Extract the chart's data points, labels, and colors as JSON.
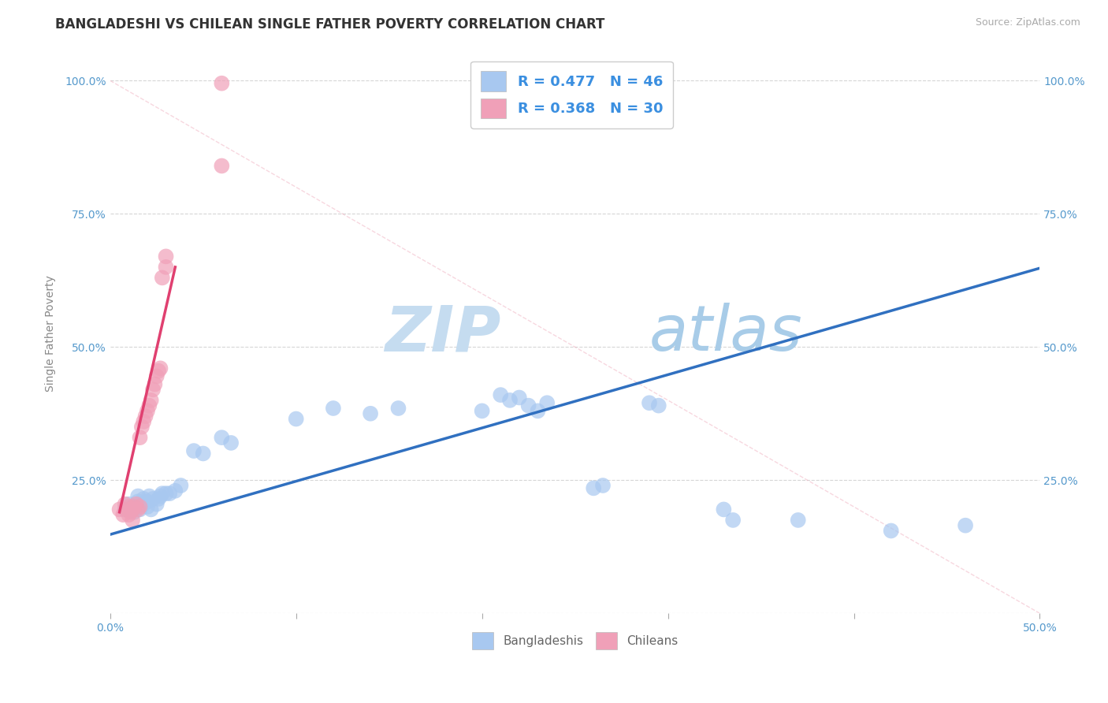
{
  "title": "BANGLADESHI VS CHILEAN SINGLE FATHER POVERTY CORRELATION CHART",
  "source": "Source: ZipAtlas.com",
  "xlim": [
    0.0,
    0.5
  ],
  "ylim": [
    0.0,
    1.05
  ],
  "ylabel": "Single Father Poverty",
  "legend_r1": "R = 0.477",
  "legend_n1": "N = 46",
  "legend_r2": "R = 0.368",
  "legend_n2": "N = 30",
  "blue_color": "#A8C8F0",
  "pink_color": "#F0A0B8",
  "blue_line_color": "#3070C0",
  "pink_line_color": "#E04070",
  "watermark_zip": "ZIP",
  "watermark_atlas": "atlas",
  "watermark_color": "#D8E8F8",
  "grid_color": "#CCCCCC",
  "background_color": "#FFFFFF",
  "title_fontsize": 12,
  "axis_label_fontsize": 10,
  "tick_fontsize": 10,
  "blue_scatter": [
    [
      0.008,
      0.195
    ],
    [
      0.01,
      0.205
    ],
    [
      0.012,
      0.2
    ],
    [
      0.013,
      0.19
    ],
    [
      0.015,
      0.21
    ],
    [
      0.015,
      0.22
    ],
    [
      0.016,
      0.195
    ],
    [
      0.018,
      0.205
    ],
    [
      0.018,
      0.215
    ],
    [
      0.02,
      0.2
    ],
    [
      0.02,
      0.21
    ],
    [
      0.021,
      0.22
    ],
    [
      0.022,
      0.195
    ],
    [
      0.023,
      0.215
    ],
    [
      0.025,
      0.205
    ],
    [
      0.026,
      0.215
    ],
    [
      0.027,
      0.22
    ],
    [
      0.028,
      0.225
    ],
    [
      0.03,
      0.225
    ],
    [
      0.032,
      0.225
    ],
    [
      0.035,
      0.23
    ],
    [
      0.038,
      0.24
    ],
    [
      0.045,
      0.305
    ],
    [
      0.05,
      0.3
    ],
    [
      0.06,
      0.33
    ],
    [
      0.065,
      0.32
    ],
    [
      0.1,
      0.365
    ],
    [
      0.12,
      0.385
    ],
    [
      0.14,
      0.375
    ],
    [
      0.155,
      0.385
    ],
    [
      0.2,
      0.38
    ],
    [
      0.21,
      0.41
    ],
    [
      0.215,
      0.4
    ],
    [
      0.22,
      0.405
    ],
    [
      0.225,
      0.39
    ],
    [
      0.23,
      0.38
    ],
    [
      0.235,
      0.395
    ],
    [
      0.26,
      0.235
    ],
    [
      0.265,
      0.24
    ],
    [
      0.29,
      0.395
    ],
    [
      0.295,
      0.39
    ],
    [
      0.33,
      0.195
    ],
    [
      0.335,
      0.175
    ],
    [
      0.37,
      0.175
    ],
    [
      0.42,
      0.155
    ],
    [
      0.46,
      0.165
    ]
  ],
  "pink_scatter": [
    [
      0.005,
      0.195
    ],
    [
      0.007,
      0.185
    ],
    [
      0.008,
      0.205
    ],
    [
      0.009,
      0.195
    ],
    [
      0.01,
      0.2
    ],
    [
      0.01,
      0.185
    ],
    [
      0.011,
      0.19
    ],
    [
      0.012,
      0.195
    ],
    [
      0.012,
      0.175
    ],
    [
      0.013,
      0.2
    ],
    [
      0.014,
      0.205
    ],
    [
      0.015,
      0.195
    ],
    [
      0.016,
      0.2
    ],
    [
      0.016,
      0.33
    ],
    [
      0.017,
      0.35
    ],
    [
      0.018,
      0.36
    ],
    [
      0.019,
      0.37
    ],
    [
      0.02,
      0.38
    ],
    [
      0.021,
      0.39
    ],
    [
      0.022,
      0.4
    ],
    [
      0.023,
      0.42
    ],
    [
      0.024,
      0.43
    ],
    [
      0.025,
      0.445
    ],
    [
      0.026,
      0.455
    ],
    [
      0.027,
      0.46
    ],
    [
      0.028,
      0.63
    ],
    [
      0.03,
      0.65
    ],
    [
      0.03,
      0.67
    ],
    [
      0.06,
      0.84
    ],
    [
      0.06,
      0.995
    ]
  ],
  "pink_line_x0": 0.005,
  "pink_line_x1": 0.035,
  "blue_line_x0": 0.0,
  "blue_line_x1": 0.5
}
